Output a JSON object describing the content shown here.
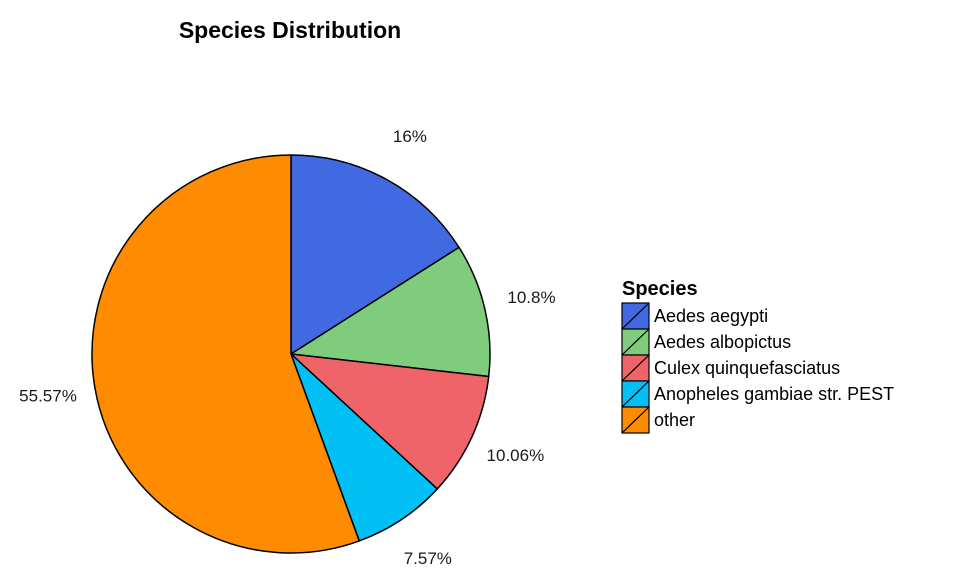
{
  "chart_data": {
    "type": "pie",
    "title": "Species Distribution",
    "legend_title": "Species",
    "legend_position": "right",
    "categories": [
      "Aedes aegypti",
      "Aedes albopictus",
      "Culex quinquefasciatus",
      "Anopheles gambiae str. PEST",
      "other"
    ],
    "values": [
      16,
      10.8,
      10.06,
      7.57,
      55.57
    ],
    "labels": [
      "16%",
      "10.8%",
      "10.06%",
      "7.57%",
      "55.57%"
    ],
    "colors": [
      "#4169e1",
      "#7fcd7c",
      "#ef6468",
      "#00c0f5",
      "#ff8c00"
    ]
  }
}
